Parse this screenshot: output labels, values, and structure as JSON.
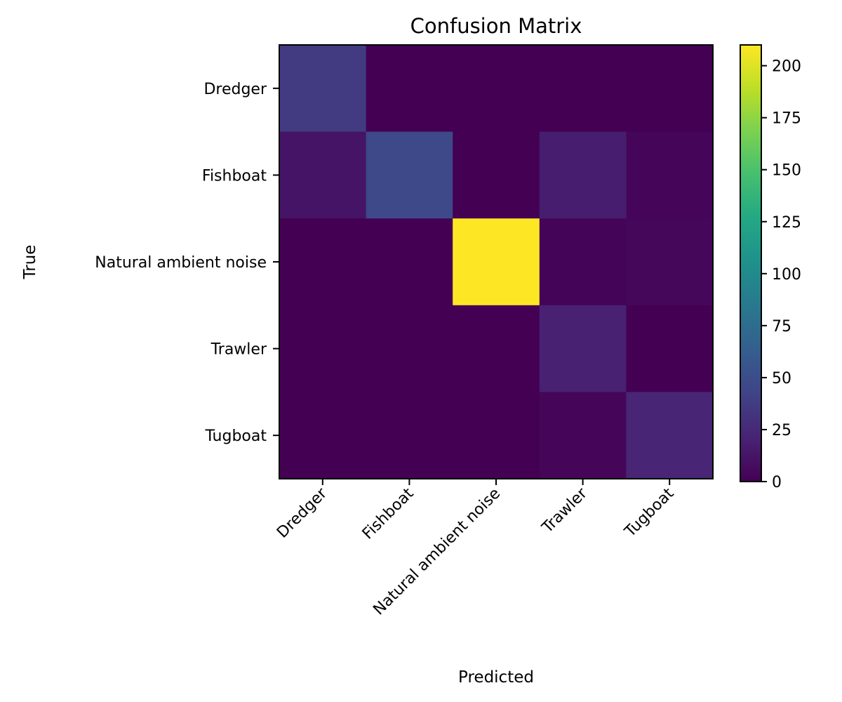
{
  "chart_data": {
    "type": "heatmap",
    "title": "Confusion Matrix",
    "xlabel": "Predicted",
    "ylabel": "True",
    "x_categories": [
      "Dredger",
      "Fishboat",
      "Natural ambient noise",
      "Trawler",
      "Tugboat"
    ],
    "y_categories": [
      "Dredger",
      "Fishboat",
      "Natural ambient noise",
      "Trawler",
      "Tugboat"
    ],
    "values": [
      [
        37,
        0,
        0,
        0,
        0
      ],
      [
        12,
        47,
        0,
        18,
        3
      ],
      [
        0,
        0,
        210,
        2,
        4
      ],
      [
        0,
        0,
        0,
        20,
        0
      ],
      [
        0,
        0,
        0,
        3,
        22
      ]
    ],
    "colorbar": {
      "range": [
        0,
        210
      ],
      "ticks": [
        0,
        25,
        50,
        75,
        100,
        125,
        150,
        175,
        200
      ],
      "colormap": "viridis"
    },
    "grid": false
  }
}
